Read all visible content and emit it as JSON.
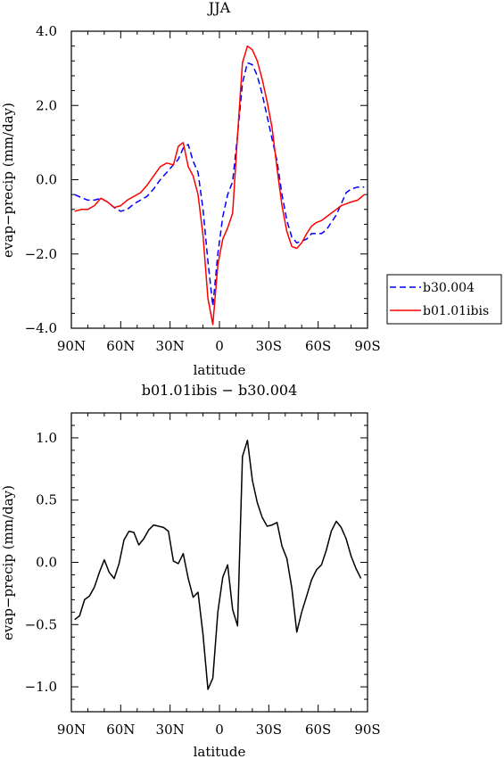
{
  "chart_data": [
    {
      "type": "line",
      "title": "JJA",
      "xlabel": "latitude",
      "ylabel": "evap−precip (mm/day)",
      "xlim": [
        -90,
        90
      ],
      "ylim": [
        -4,
        4
      ],
      "x_ticks": [
        -90,
        -60,
        -30,
        0,
        30,
        60,
        90
      ],
      "x_tick_labels": [
        "90N",
        "60N",
        "30N",
        "0",
        "30S",
        "60S",
        "90S"
      ],
      "y_ticks": [
        -4,
        -2,
        0,
        2,
        4
      ],
      "y_tick_labels": [
        "−4.0",
        "−2.0",
        "0.0",
        "2.0",
        "4.0"
      ],
      "legend_position": "outside-right",
      "series": [
        {
          "name": "b30.004",
          "color": "#0000ff",
          "style": "dashed",
          "x": [
            -88,
            -84,
            -80,
            -76,
            -72,
            -68,
            -64,
            -60,
            -56,
            -52,
            -48,
            -44,
            -40,
            -36,
            -32,
            -28,
            -25,
            -22,
            -19,
            -16,
            -13,
            -10,
            -7,
            -4,
            -1,
            2,
            5,
            8,
            11,
            14,
            17,
            20,
            23,
            26,
            29,
            32,
            35,
            38,
            41,
            44,
            47,
            50,
            53,
            56,
            59,
            62,
            65,
            68,
            71,
            74,
            77,
            80,
            84,
            88
          ],
          "y": [
            -0.4,
            -0.48,
            -0.55,
            -0.55,
            -0.5,
            -0.6,
            -0.75,
            -0.85,
            -0.8,
            -0.65,
            -0.55,
            -0.45,
            -0.25,
            0.0,
            0.2,
            0.4,
            0.55,
            0.85,
            0.95,
            0.5,
            0.2,
            -0.8,
            -2.2,
            -3.4,
            -2.0,
            -1.0,
            -0.4,
            -0.05,
            1.2,
            2.6,
            3.15,
            3.1,
            2.8,
            2.3,
            1.7,
            1.1,
            0.5,
            -0.4,
            -1.1,
            -1.55,
            -1.7,
            -1.65,
            -1.6,
            -1.45,
            -1.45,
            -1.45,
            -1.35,
            -1.15,
            -0.95,
            -0.65,
            -0.35,
            -0.25,
            -0.2,
            -0.2
          ]
        },
        {
          "name": "b01.01ibis",
          "color": "#ff0000",
          "style": "solid",
          "x": [
            -88,
            -84,
            -80,
            -76,
            -72,
            -68,
            -64,
            -60,
            -56,
            -52,
            -48,
            -44,
            -40,
            -36,
            -32,
            -28,
            -25,
            -22,
            -19,
            -16,
            -13,
            -10,
            -7,
            -4,
            -1,
            2,
            5,
            8,
            11,
            14,
            17,
            20,
            23,
            26,
            29,
            32,
            35,
            38,
            41,
            44,
            47,
            50,
            53,
            56,
            59,
            62,
            65,
            68,
            71,
            74,
            77,
            80,
            84,
            88
          ],
          "y": [
            -0.85,
            -0.8,
            -0.8,
            -0.7,
            -0.5,
            -0.6,
            -0.75,
            -0.7,
            -0.55,
            -0.45,
            -0.35,
            -0.15,
            0.1,
            0.35,
            0.45,
            0.4,
            0.9,
            1.0,
            0.35,
            0.1,
            -0.4,
            -1.5,
            -3.2,
            -3.9,
            -2.3,
            -1.6,
            -1.3,
            -0.9,
            1.2,
            3.15,
            3.6,
            3.5,
            3.2,
            2.7,
            2.1,
            1.4,
            0.3,
            -0.7,
            -1.4,
            -1.8,
            -1.85,
            -1.7,
            -1.45,
            -1.25,
            -1.15,
            -1.1,
            -1.0,
            -0.9,
            -0.8,
            -0.7,
            -0.65,
            -0.6,
            -0.55,
            -0.4
          ]
        }
      ]
    },
    {
      "type": "line",
      "title": "b01.01ibis − b30.004",
      "xlabel": "latitude",
      "ylabel": "evap−precip (mm/day)",
      "xlim": [
        -90,
        90
      ],
      "ylim": [
        -1.2,
        1.2
      ],
      "x_ticks": [
        -90,
        -60,
        -30,
        0,
        30,
        60,
        90
      ],
      "x_tick_labels": [
        "90N",
        "60N",
        "30N",
        "0",
        "30S",
        "60S",
        "90S"
      ],
      "y_ticks": [
        -1.0,
        -0.5,
        0.0,
        0.5,
        1.0
      ],
      "y_tick_labels": [
        "−1.0",
        "−0.5",
        "0.0",
        "0.5",
        "1.0"
      ],
      "series": [
        {
          "color": "#000000",
          "style": "solid",
          "x": [
            -88,
            -85,
            -82,
            -79,
            -76,
            -73,
            -70,
            -67,
            -64,
            -61,
            -58,
            -55,
            -52,
            -49,
            -46,
            -43,
            -40,
            -37,
            -34,
            -31,
            -28,
            -25,
            -22,
            -19,
            -16,
            -13,
            -10,
            -7,
            -4,
            -1,
            2,
            5,
            8,
            11,
            14,
            17,
            20,
            23,
            26,
            29,
            32,
            35,
            38,
            41,
            44,
            47,
            50,
            53,
            56,
            59,
            62,
            65,
            68,
            71,
            74,
            77,
            80,
            83,
            86
          ],
          "y": [
            -0.46,
            -0.43,
            -0.3,
            -0.27,
            -0.2,
            -0.08,
            0.02,
            -0.08,
            -0.13,
            -0.01,
            0.18,
            0.25,
            0.24,
            0.14,
            0.19,
            0.26,
            0.3,
            0.29,
            0.28,
            0.25,
            0.01,
            -0.01,
            0.07,
            -0.13,
            -0.28,
            -0.24,
            -0.58,
            -1.02,
            -0.93,
            -0.4,
            -0.12,
            -0.02,
            -0.38,
            -0.51,
            0.85,
            0.98,
            0.66,
            0.48,
            0.36,
            0.29,
            0.3,
            0.32,
            0.13,
            0.03,
            -0.21,
            -0.56,
            -0.4,
            -0.27,
            -0.14,
            -0.06,
            -0.02,
            0.1,
            0.25,
            0.33,
            0.28,
            0.19,
            0.05,
            -0.05,
            -0.13
          ]
        }
      ]
    }
  ]
}
